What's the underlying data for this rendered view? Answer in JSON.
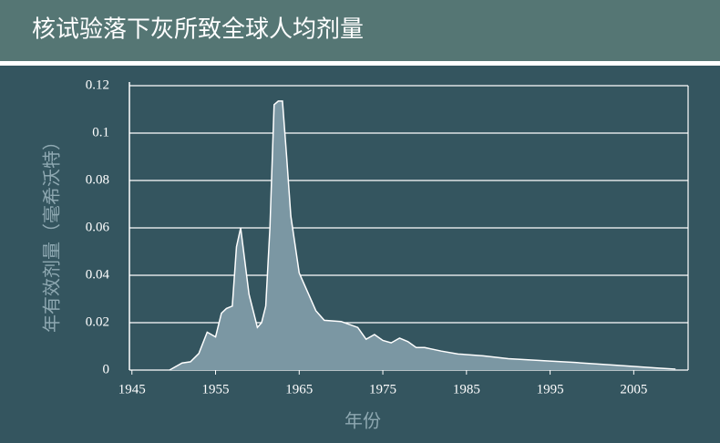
{
  "chart_data": {
    "type": "area",
    "title": "核试验落下灰所致全球人均剂量",
    "x_label": "年份",
    "y_label": "年有效剂量（毫希沃特）",
    "x": [
      1949.5,
      1950,
      1951,
      1952,
      1953,
      1954,
      1955,
      1955.7,
      1956.3,
      1957,
      1957.5,
      1958,
      1958.5,
      1959,
      1960,
      1960.5,
      1961,
      1961.5,
      1962,
      1962.5,
      1963,
      1963.5,
      1964,
      1965,
      1966,
      1967,
      1968,
      1970,
      1972,
      1973,
      1974,
      1975,
      1976,
      1977,
      1978,
      1979,
      1980,
      1982,
      1984,
      1987,
      1990,
      1995,
      1998,
      2003,
      2008,
      2010
    ],
    "values": [
      0,
      0.001,
      0.003,
      0.0035,
      0.007,
      0.016,
      0.014,
      0.024,
      0.026,
      0.027,
      0.052,
      0.06,
      0.046,
      0.032,
      0.018,
      0.02,
      0.027,
      0.06,
      0.112,
      0.1135,
      0.1135,
      0.09,
      0.065,
      0.041,
      0.033,
      0.025,
      0.021,
      0.0205,
      0.018,
      0.013,
      0.015,
      0.0125,
      0.0115,
      0.0135,
      0.012,
      0.0095,
      0.0095,
      0.008,
      0.0068,
      0.006,
      0.0048,
      0.0038,
      0.0032,
      0.002,
      0.0008,
      0.0004
    ],
    "color": "#7b97a3",
    "xlim": [
      1944.7,
      2011.5
    ],
    "xticks": [
      1945,
      1955,
      1965,
      1975,
      1985,
      1995,
      2005
    ],
    "ylim": [
      0,
      0.12
    ],
    "yticks": [
      0,
      0.02,
      0.04,
      0.06,
      0.08,
      0.1,
      0.12
    ],
    "grid": true
  }
}
